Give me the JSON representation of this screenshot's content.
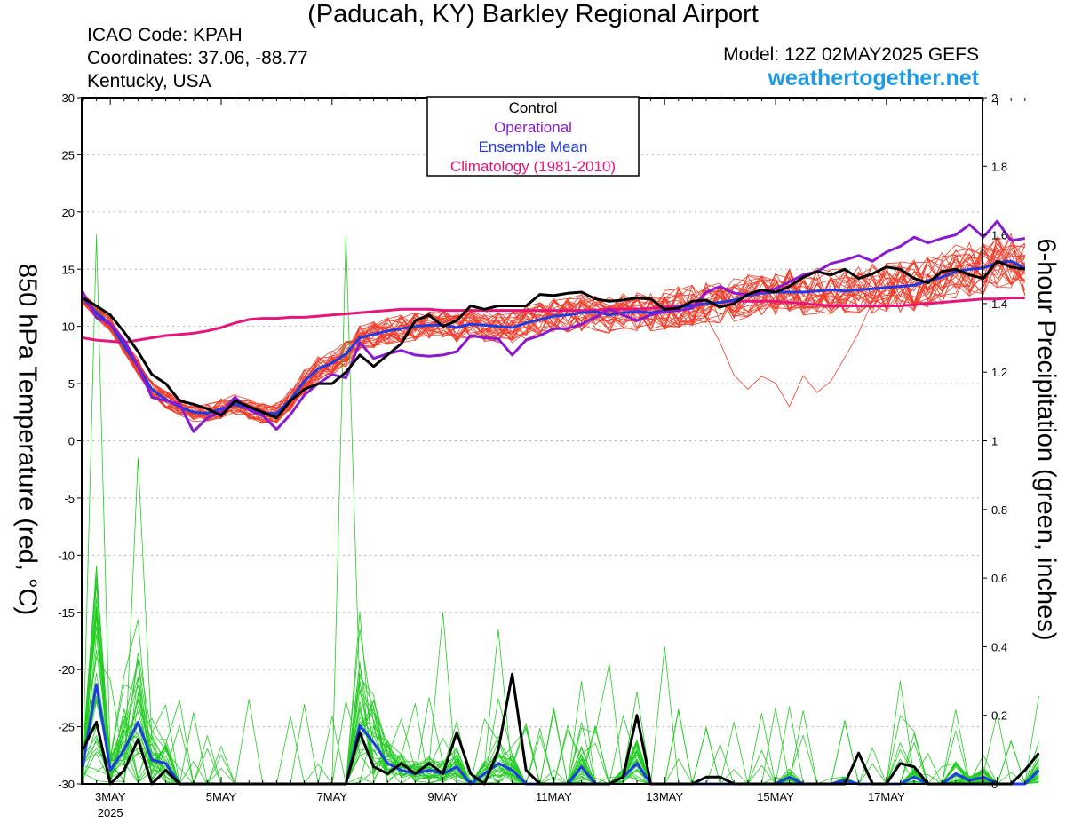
{
  "header": {
    "title": "(Paducah, KY) Barkley Regional Airport",
    "icao": "ICAO Code: KPAH",
    "coords": "Coordinates: 37.06, -88.77",
    "region": "Kentucky, USA",
    "model": "Model: 12Z 02MAY2025 GEFS",
    "site": "weathertogether.net"
  },
  "colors": {
    "control": "#000000",
    "operational": "#8a1ad2",
    "ensemble_mean": "#1f3be6",
    "climatology": "#e6147d",
    "members_temp": "#f03c28",
    "members_precip": "#22cc22",
    "site": "#1e9be6"
  },
  "chart_data": {
    "type": "line",
    "title": "(Paducah, KY) Barkley Regional Airport",
    "ylabel": "850 hPa Temperature (red, °C)",
    "y2label": "6-hour Precipitation (green, inches)",
    "ylim": [
      -30,
      30
    ],
    "y2lim": [
      0,
      2
    ],
    "yticks": [
      "30",
      "25",
      "20",
      "15",
      "10",
      "5",
      "0",
      "-5",
      "-10",
      "-15",
      "-20",
      "-25",
      "-30"
    ],
    "y2ticks": [
      "2",
      "1.8",
      "1.6",
      "1.4",
      "1.2",
      "1",
      "0.8",
      "0.6",
      "0.4",
      "0.2",
      "0"
    ],
    "xticks": [
      "3MAY",
      "5MAY",
      "7MAY",
      "9MAY",
      "11MAY",
      "13MAY",
      "15MAY",
      "17MAY"
    ],
    "xtick_year": "2025",
    "x_start": "2025-05-02 12Z",
    "x_step_hours": 6,
    "grid": true,
    "legend": [
      "Control",
      "Operational",
      "Ensemble Mean",
      "Climatology (1981-2010)"
    ],
    "legend_position": "top-center",
    "temperature": {
      "control": [
        12.5,
        11.8,
        11.0,
        9.5,
        7.8,
        5.8,
        5.0,
        3.5,
        3.2,
        2.8,
        2.2,
        3.5,
        3.0,
        2.5,
        2.0,
        3.5,
        4.5,
        5.0,
        5.0,
        6.0,
        7.5,
        6.5,
        7.5,
        8.5,
        10.5,
        11.0,
        10.0,
        10.5,
        11.8,
        11.5,
        11.8,
        11.8,
        11.8,
        12.8,
        12.7,
        12.9,
        13.0,
        12.4,
        12.2,
        12.3,
        12.5,
        12.4,
        11.5,
        11.6,
        12.2,
        12.3,
        11.7,
        12.0,
        12.8,
        13.2,
        13.0,
        13.5,
        14.3,
        14.8,
        14.5,
        15.0,
        14.2,
        14.6,
        15.2,
        15.0,
        14.2,
        13.8,
        14.8,
        15.0,
        14.5,
        14.2,
        15.7,
        15.2,
        15.0
      ],
      "operational": [
        13.0,
        10.8,
        10.2,
        8.8,
        6.5,
        3.8,
        3.5,
        3.2,
        0.8,
        2.0,
        2.5,
        3.8,
        2.7,
        2.2,
        1.0,
        2.3,
        4.0,
        5.0,
        5.8,
        5.5,
        8.6,
        7.2,
        7.6,
        7.9,
        7.5,
        7.4,
        7.5,
        7.8,
        9.2,
        9.0,
        8.9,
        7.5,
        8.8,
        9.2,
        9.8,
        9.8,
        10.2,
        10.8,
        11.5,
        11.0,
        10.5,
        11.0,
        11.3,
        11.4,
        11.6,
        13.0,
        13.5,
        12.9,
        12.8,
        13.0,
        13.3,
        13.9,
        14.5,
        14.8,
        15.5,
        15.8,
        16.2,
        15.7,
        16.5,
        17.0,
        17.8,
        17.3,
        17.7,
        18.0,
        18.9,
        17.8,
        19.2,
        17.5,
        17.7
      ],
      "ensemble_mean": [
        12.5,
        11.2,
        10.2,
        8.3,
        6.5,
        4.5,
        3.6,
        3.0,
        2.5,
        2.4,
        2.8,
        3.2,
        2.8,
        2.4,
        2.4,
        3.6,
        5.2,
        6.3,
        6.8,
        7.6,
        9.0,
        9.3,
        9.6,
        9.8,
        10.0,
        10.1,
        10.1,
        9.9,
        10.2,
        10.1,
        10.0,
        9.9,
        10.3,
        10.6,
        10.9,
        11.0,
        11.2,
        11.3,
        11.0,
        11.2,
        11.3,
        11.2,
        11.4,
        11.7,
        11.8,
        12.0,
        12.1,
        12.3,
        12.7,
        12.9,
        13.0,
        13.0,
        13.0,
        13.1,
        13.2,
        13.1,
        13.2,
        13.3,
        13.4,
        13.5,
        13.6,
        14.0,
        14.3,
        14.8,
        15.0,
        15.1,
        15.6,
        15.7,
        15.1
      ],
      "climatology": [
        9.0,
        8.8,
        8.7,
        8.6,
        8.8,
        9.0,
        9.2,
        9.3,
        9.4,
        9.6,
        9.9,
        10.3,
        10.6,
        10.7,
        10.7,
        10.8,
        10.8,
        10.9,
        11.0,
        11.1,
        11.2,
        11.3,
        11.4,
        11.5,
        11.5,
        11.5,
        11.4,
        11.4,
        11.4,
        11.4,
        11.4,
        11.4,
        11.4,
        11.4,
        11.4,
        11.4,
        11.4,
        11.4,
        11.5,
        11.5,
        11.5,
        11.6,
        11.7,
        11.8,
        11.9,
        12.0,
        12.1,
        12.2,
        12.2,
        12.2,
        12.2,
        12.1,
        12.0,
        11.9,
        11.8,
        11.8,
        11.8,
        11.8,
        11.8,
        11.8,
        11.9,
        12.0,
        12.1,
        12.2,
        12.3,
        12.4,
        12.4,
        12.5,
        12.5
      ],
      "members_count": 30,
      "members_spread": 1.2
    },
    "precipitation": {
      "control": [
        0.1,
        0.18,
        0.0,
        0.04,
        0.13,
        0.0,
        0.04,
        0.0,
        0.0,
        0.0,
        0.0,
        0.0,
        0.0,
        0.0,
        0.0,
        0.0,
        0.0,
        0.0,
        0.0,
        0.0,
        0.15,
        0.05,
        0.03,
        0.06,
        0.03,
        0.06,
        0.03,
        0.15,
        0.03,
        0.0,
        0.1,
        0.32,
        0.04,
        0.0,
        0.0,
        0.0,
        0.0,
        0.0,
        0.0,
        0.02,
        0.2,
        0.0,
        0.0,
        0.0,
        0.0,
        0.02,
        0.02,
        0.0,
        0.0,
        0.0,
        0.0,
        0.0,
        0.0,
        0.0,
        0.0,
        0.0,
        0.09,
        0.0,
        0.0,
        0.06,
        0.05,
        0.0,
        0.0,
        0.0,
        0.0,
        0.0,
        0.0,
        0.0,
        0.04,
        0.09
      ],
      "ensemble_mean": [
        0.05,
        0.29,
        0.04,
        0.1,
        0.18,
        0.07,
        0.06,
        0.0,
        0.0,
        0.0,
        0.0,
        0.0,
        0.0,
        0.0,
        0.0,
        0.0,
        0.0,
        0.0,
        0.0,
        0.0,
        0.17,
        0.12,
        0.06,
        0.04,
        0.03,
        0.04,
        0.03,
        0.05,
        0.0,
        0.03,
        0.06,
        0.04,
        0.0,
        0.0,
        0.0,
        0.0,
        0.05,
        0.0,
        0.0,
        0.02,
        0.06,
        0.0,
        0.0,
        0.0,
        0.0,
        0.0,
        0.0,
        0.0,
        0.0,
        0.0,
        0.0,
        0.02,
        0.0,
        0.0,
        0.0,
        0.01,
        0.0,
        0.0,
        0.0,
        0.0,
        0.02,
        0.0,
        0.0,
        0.03,
        0.01,
        0.02,
        0.0,
        0.0,
        0.0,
        0.04
      ],
      "members_count": 30,
      "members_peak": 1.6
    }
  }
}
